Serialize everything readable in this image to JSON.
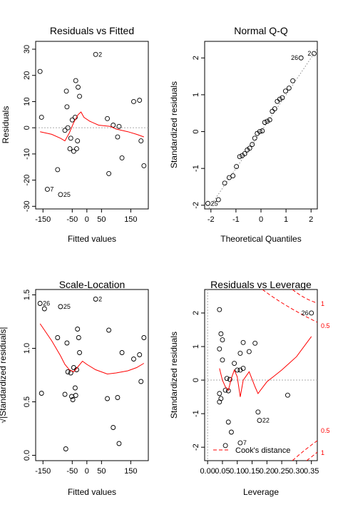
{
  "chart_data": [
    {
      "type": "scatter",
      "title": "Residuals vs Fitted",
      "xlabel": "Fitted values",
      "ylabel": "Residuals",
      "xlim": [
        -175,
        210
      ],
      "ylim": [
        -31,
        33
      ],
      "xticks": [
        -150,
        -50,
        0,
        50,
        150
      ],
      "yticks": [
        -30,
        -20,
        -10,
        0,
        10,
        20,
        30
      ],
      "hline": 0,
      "points": [
        {
          "x": -160,
          "y": 21.5
        },
        {
          "x": -155,
          "y": 4
        },
        {
          "x": -135,
          "y": -23.5,
          "label": "7"
        },
        {
          "x": -100,
          "y": -16
        },
        {
          "x": -90,
          "y": -25.5,
          "label": "25"
        },
        {
          "x": -75,
          "y": -1
        },
        {
          "x": -70,
          "y": 14
        },
        {
          "x": -68,
          "y": 8
        },
        {
          "x": -65,
          "y": 0
        },
        {
          "x": -58,
          "y": -8
        },
        {
          "x": -55,
          "y": -4
        },
        {
          "x": -50,
          "y": 3
        },
        {
          "x": -45,
          "y": -9
        },
        {
          "x": -40,
          "y": 4
        },
        {
          "x": -38,
          "y": 18
        },
        {
          "x": -35,
          "y": -8
        },
        {
          "x": -32,
          "y": -5
        },
        {
          "x": -30,
          "y": 15.5
        },
        {
          "x": -25,
          "y": 12
        },
        {
          "x": 30,
          "y": 28,
          "label": "2"
        },
        {
          "x": 70,
          "y": 3.5
        },
        {
          "x": 75,
          "y": -17.5
        },
        {
          "x": 90,
          "y": 1
        },
        {
          "x": 105,
          "y": -3.5
        },
        {
          "x": 110,
          "y": 0.5
        },
        {
          "x": 120,
          "y": -11.5
        },
        {
          "x": 160,
          "y": 10
        },
        {
          "x": 180,
          "y": 10.5
        },
        {
          "x": 185,
          "y": -5
        },
        {
          "x": 195,
          "y": -14.5
        }
      ],
      "smooth": [
        [
          -160,
          -1.5
        ],
        [
          -120,
          -2.5
        ],
        [
          -90,
          -4
        ],
        [
          -75,
          -5
        ],
        [
          -60,
          -2
        ],
        [
          -45,
          2
        ],
        [
          -30,
          5
        ],
        [
          -20,
          6
        ],
        [
          -10,
          4
        ],
        [
          10,
          2.5
        ],
        [
          40,
          1
        ],
        [
          80,
          0.5
        ],
        [
          100,
          -0.5
        ],
        [
          140,
          -1.5
        ],
        [
          170,
          -2.5
        ],
        [
          195,
          -3.5
        ]
      ]
    },
    {
      "type": "scatter",
      "title": "Normal Q-Q",
      "xlabel": "Theoretical Quantiles",
      "ylabel": "Standardized residuals",
      "xlim": [
        -2.25,
        2.25
      ],
      "ylim": [
        -2.1,
        2.45
      ],
      "xticks": [
        -2,
        -1,
        0,
        1,
        2
      ],
      "yticks": [
        -2,
        -1,
        0,
        1,
        2
      ],
      "refline": [
        [
          -2.4,
          -2.4
        ],
        [
          2.4,
          2.4
        ]
      ],
      "points": [
        {
          "x": -2.12,
          "y": -1.95,
          "label": "25"
        },
        {
          "x": -1.7,
          "y": -1.85
        },
        {
          "x": -1.45,
          "y": -1.4
        },
        {
          "x": -1.27,
          "y": -1.25
        },
        {
          "x": -1.12,
          "y": -1.2
        },
        {
          "x": -0.98,
          "y": -0.95
        },
        {
          "x": -0.85,
          "y": -0.68
        },
        {
          "x": -0.75,
          "y": -0.65
        },
        {
          "x": -0.65,
          "y": -0.6
        },
        {
          "x": -0.55,
          "y": -0.5
        },
        {
          "x": -0.45,
          "y": -0.45
        },
        {
          "x": -0.35,
          "y": -0.35
        },
        {
          "x": -0.25,
          "y": -0.18
        },
        {
          "x": -0.15,
          "y": -0.05
        },
        {
          "x": -0.05,
          "y": 0
        },
        {
          "x": 0.05,
          "y": 0.02
        },
        {
          "x": 0.15,
          "y": 0.25
        },
        {
          "x": 0.25,
          "y": 0.28
        },
        {
          "x": 0.35,
          "y": 0.32
        },
        {
          "x": 0.45,
          "y": 0.55
        },
        {
          "x": 0.55,
          "y": 0.62
        },
        {
          "x": 0.65,
          "y": 0.82
        },
        {
          "x": 0.75,
          "y": 0.88
        },
        {
          "x": 0.85,
          "y": 0.92
        },
        {
          "x": 0.98,
          "y": 1.1
        },
        {
          "x": 1.12,
          "y": 1.18
        },
        {
          "x": 1.27,
          "y": 1.38
        },
        {
          "x": 1.6,
          "y": 2.0,
          "label": "26"
        },
        {
          "x": 2.12,
          "y": 2.12,
          "label": "2"
        }
      ]
    },
    {
      "type": "scatter",
      "title": "Scale-Location",
      "xlabel": "Fitted values",
      "ylabel": "√|Standardized residuals|",
      "xlim": [
        -175,
        210
      ],
      "ylim": [
        -0.05,
        1.55
      ],
      "xticks": [
        -150,
        -50,
        0,
        50,
        150
      ],
      "yticks": [
        0.0,
        0.5,
        1.0,
        1.5
      ],
      "ytick_labels": [
        "0.0",
        "0.5",
        "1.0",
        "1.5"
      ],
      "points": [
        {
          "x": -160,
          "y": 1.42,
          "label": "26"
        },
        {
          "x": -155,
          "y": 0.58
        },
        {
          "x": -145,
          "y": 1.37
        },
        {
          "x": -100,
          "y": 1.1
        },
        {
          "x": -90,
          "y": 1.39,
          "label": "25"
        },
        {
          "x": -75,
          "y": 0.57
        },
        {
          "x": -72,
          "y": 0.06
        },
        {
          "x": -68,
          "y": 1.05
        },
        {
          "x": -65,
          "y": 0.78
        },
        {
          "x": -55,
          "y": 0.77
        },
        {
          "x": -52,
          "y": 0.55
        },
        {
          "x": -48,
          "y": 0.52
        },
        {
          "x": -45,
          "y": 0.82
        },
        {
          "x": -40,
          "y": 0.63
        },
        {
          "x": -38,
          "y": 0.56
        },
        {
          "x": -35,
          "y": 0.8
        },
        {
          "x": -32,
          "y": 1.18
        },
        {
          "x": -28,
          "y": 1.1
        },
        {
          "x": -25,
          "y": 0.96
        },
        {
          "x": 30,
          "y": 1.46,
          "label": "2"
        },
        {
          "x": 70,
          "y": 0.53
        },
        {
          "x": 75,
          "y": 1.17
        },
        {
          "x": 90,
          "y": 0.26
        },
        {
          "x": 105,
          "y": 0.54
        },
        {
          "x": 110,
          "y": 0.11
        },
        {
          "x": 120,
          "y": 0.96
        },
        {
          "x": 160,
          "y": 0.9
        },
        {
          "x": 180,
          "y": 0.94
        },
        {
          "x": 185,
          "y": 0.69
        },
        {
          "x": 195,
          "y": 1.1
        }
      ],
      "smooth": [
        [
          -160,
          1.23
        ],
        [
          -120,
          1.07
        ],
        [
          -90,
          0.93
        ],
        [
          -75,
          0.85
        ],
        [
          -60,
          0.8
        ],
        [
          -45,
          0.78
        ],
        [
          -30,
          0.83
        ],
        [
          -15,
          0.88
        ],
        [
          0,
          0.85
        ],
        [
          30,
          0.8
        ],
        [
          70,
          0.76
        ],
        [
          100,
          0.77
        ],
        [
          140,
          0.79
        ],
        [
          170,
          0.82
        ],
        [
          195,
          0.86
        ]
      ]
    },
    {
      "type": "scatter",
      "title": "Residuals vs Leverage",
      "xlabel": "Leverage",
      "ylabel": "Standardized residuals",
      "xlim": [
        -0.01,
        0.37
      ],
      "ylim": [
        -2.4,
        2.7
      ],
      "xticks": [
        0.0,
        0.05,
        0.1,
        0.15,
        0.2,
        0.25,
        0.3,
        0.35
      ],
      "xtick_labels": [
        "0.00",
        "0.05",
        "0.10",
        "0.15",
        "0.20",
        "0.25",
        "0.30",
        "0.35"
      ],
      "yticks": [
        -2,
        -1,
        0,
        1,
        2
      ],
      "hline": 0,
      "vline": 0,
      "points": [
        {
          "x": 0.04,
          "y": 2.1
        },
        {
          "x": 0.045,
          "y": 1.38
        },
        {
          "x": 0.04,
          "y": 0.93
        },
        {
          "x": 0.05,
          "y": 1.2
        },
        {
          "x": 0.05,
          "y": 0.6
        },
        {
          "x": 0.04,
          "y": -0.4
        },
        {
          "x": 0.04,
          "y": -0.65
        },
        {
          "x": 0.045,
          "y": -0.55
        },
        {
          "x": 0.06,
          "y": -0.3
        },
        {
          "x": 0.06,
          "y": -1.95
        },
        {
          "x": 0.065,
          "y": 0.05
        },
        {
          "x": 0.07,
          "y": -0.32
        },
        {
          "x": 0.07,
          "y": -1.25
        },
        {
          "x": 0.075,
          "y": 0.02
        },
        {
          "x": 0.08,
          "y": -1.55
        },
        {
          "x": 0.09,
          "y": 0.5
        },
        {
          "x": 0.1,
          "y": 0.3
        },
        {
          "x": 0.11,
          "y": 0.3
        },
        {
          "x": 0.11,
          "y": 0.8
        },
        {
          "x": 0.11,
          "y": -1.87,
          "label": "7"
        },
        {
          "x": 0.12,
          "y": 1.12
        },
        {
          "x": 0.12,
          "y": 0.35
        },
        {
          "x": 0.14,
          "y": 0.85
        },
        {
          "x": 0.16,
          "y": 1.1
        },
        {
          "x": 0.17,
          "y": -0.95
        },
        {
          "x": 0.175,
          "y": -1.2,
          "label": "22"
        },
        {
          "x": 0.27,
          "y": -0.45
        },
        {
          "x": 0.35,
          "y": 2.0,
          "label": "26"
        }
      ],
      "smooth": [
        [
          0.04,
          0.35
        ],
        [
          0.05,
          0.0
        ],
        [
          0.06,
          -0.2
        ],
        [
          0.07,
          -0.3
        ],
        [
          0.08,
          0.05
        ],
        [
          0.09,
          0.3
        ],
        [
          0.1,
          0.1
        ],
        [
          0.11,
          -0.5
        ],
        [
          0.12,
          0.0
        ],
        [
          0.14,
          0.25
        ],
        [
          0.16,
          -0.2
        ],
        [
          0.17,
          -0.4
        ],
        [
          0.2,
          -0.05
        ],
        [
          0.25,
          0.3
        ],
        [
          0.3,
          0.7
        ],
        [
          0.35,
          1.3
        ]
      ],
      "cooks_levels": [
        0.5,
        1
      ],
      "cooks_labels": [
        "1",
        "0.5",
        "0.5",
        "1"
      ],
      "legend": "Cook's distance",
      "legend_position": "bottom-left"
    }
  ]
}
